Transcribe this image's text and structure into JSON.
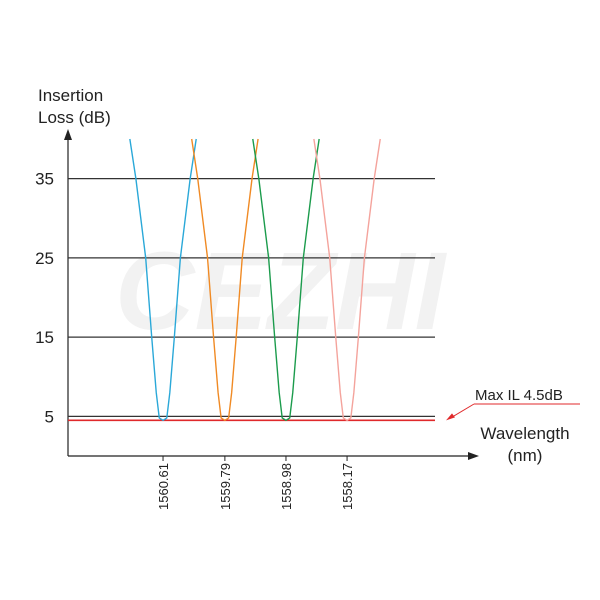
{
  "chart_data": {
    "type": "line",
    "watermark": "CEZHI",
    "y_label": [
      "Insertion",
      "Loss (dB)"
    ],
    "x_label": [
      "Wavelength",
      "(nm)"
    ],
    "xlim": [
      1561.87,
      1556.54
    ],
    "xticks": [
      1560.61,
      1559.79,
      1558.98,
      1558.17
    ],
    "ylim": [
      0,
      40
    ],
    "yticks": [
      5,
      15,
      25,
      35
    ],
    "grid": true,
    "max_il": {
      "value": 4.5,
      "label": "Max IL 4.5dB",
      "color": "#e0292b"
    },
    "series": [
      {
        "color": "#2aa8d8",
        "x": [
          1561.05,
          1560.97,
          1560.84,
          1560.76,
          1560.7,
          1560.66,
          1560.61,
          1560.56,
          1560.52,
          1560.46,
          1560.38,
          1560.25,
          1560.17
        ],
        "values": [
          40,
          35,
          25,
          15,
          8,
          4.8,
          4.5,
          4.8,
          8,
          15,
          25,
          35,
          40
        ]
      },
      {
        "color": "#f08a24",
        "x": [
          1560.23,
          1560.15,
          1560.02,
          1559.94,
          1559.88,
          1559.84,
          1559.79,
          1559.74,
          1559.7,
          1559.64,
          1559.56,
          1559.43,
          1559.35
        ],
        "values": [
          40,
          35,
          25,
          15,
          8,
          4.8,
          4.5,
          4.8,
          8,
          15,
          25,
          35,
          40
        ]
      },
      {
        "color": "#1b9b4c",
        "x": [
          1559.42,
          1559.34,
          1559.21,
          1559.13,
          1559.07,
          1559.03,
          1558.98,
          1558.93,
          1558.89,
          1558.83,
          1558.75,
          1558.62,
          1558.54
        ],
        "values": [
          40,
          35,
          25,
          15,
          8,
          4.8,
          4.5,
          4.8,
          8,
          15,
          25,
          35,
          40
        ]
      },
      {
        "color": "#f4a39c",
        "x": [
          1558.61,
          1558.53,
          1558.4,
          1558.32,
          1558.26,
          1558.22,
          1558.17,
          1558.12,
          1558.08,
          1558.02,
          1557.94,
          1557.81,
          1557.73
        ],
        "values": [
          40,
          35,
          25,
          15,
          8,
          4.8,
          4.5,
          4.8,
          8,
          15,
          25,
          35,
          40
        ]
      }
    ]
  }
}
